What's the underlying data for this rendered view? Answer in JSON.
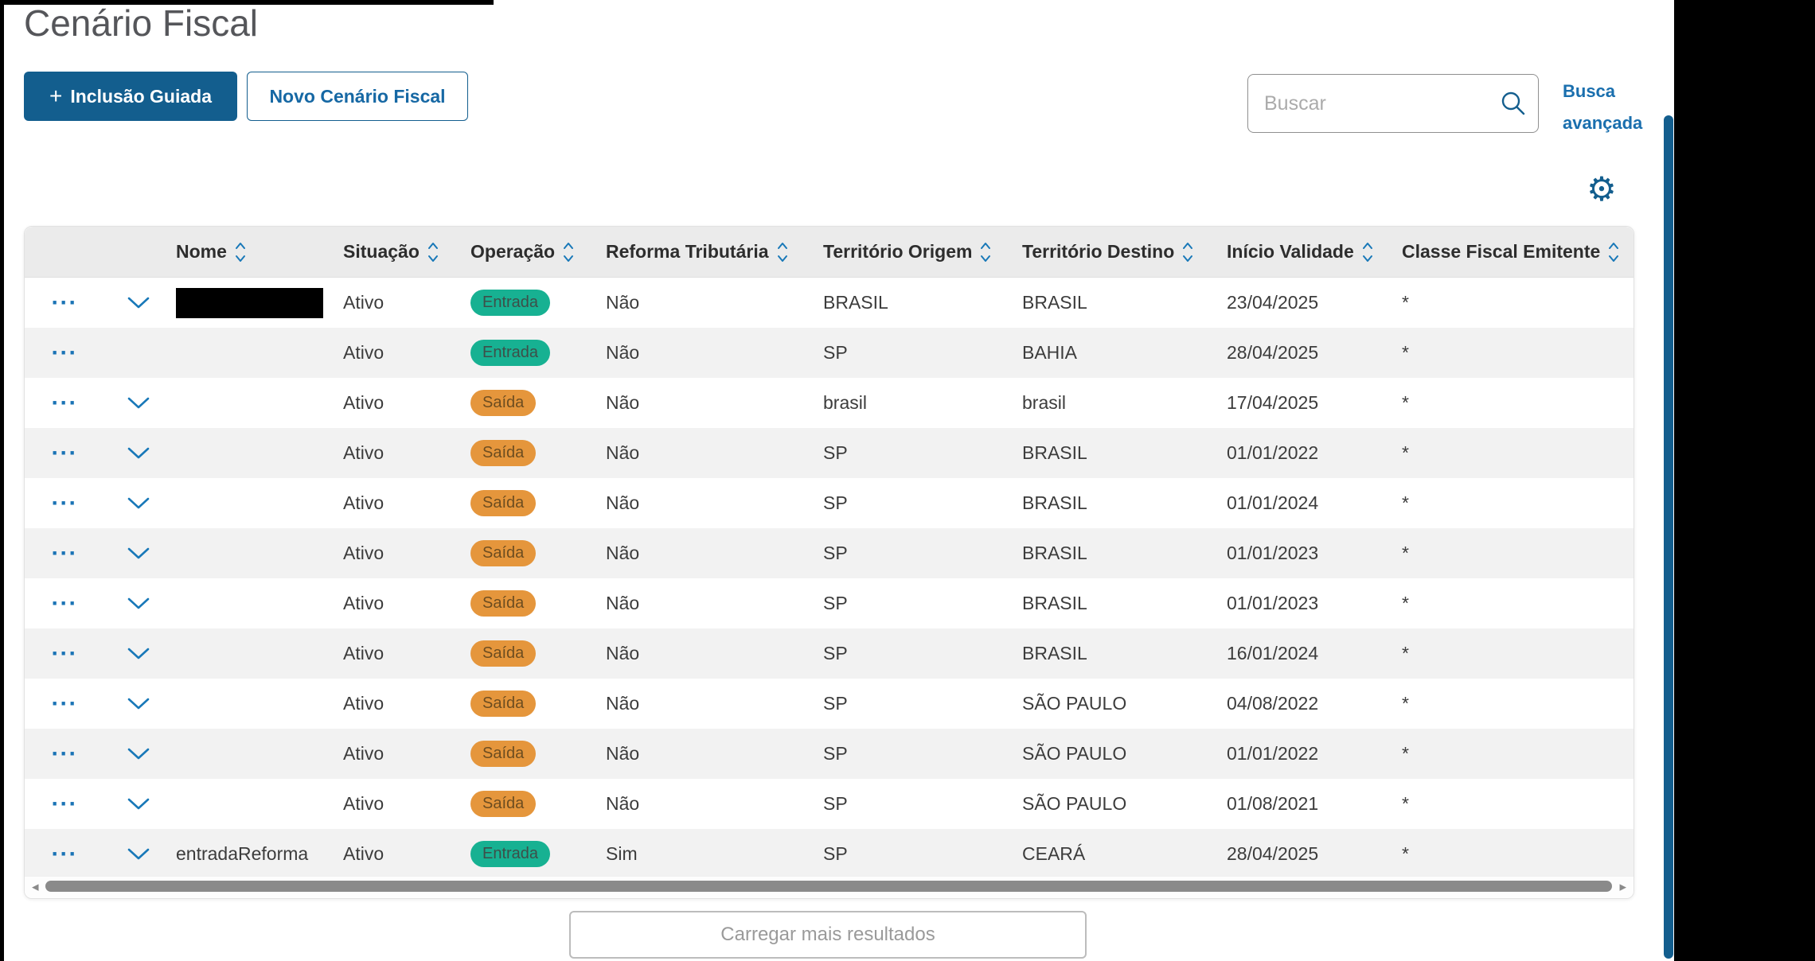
{
  "page": {
    "title": "Cenário Fiscal"
  },
  "toolbar": {
    "inclusao_guiada": {
      "plus_icon": "+",
      "label": "Inclusão Guiada"
    },
    "novo_cenario_label": "Novo Cenário Fiscal"
  },
  "search": {
    "placeholder": "Buscar",
    "advanced_line1": "Busca",
    "advanced_line2": "avançada"
  },
  "icons": {
    "gear": "⚙",
    "row_actions": "···",
    "scroll_left": "◂",
    "scroll_right": "▸"
  },
  "table": {
    "columns": [
      {
        "label": "",
        "sortable": false
      },
      {
        "label": "",
        "sortable": false
      },
      {
        "label": "Nome",
        "sortable": true
      },
      {
        "label": "Situação",
        "sortable": true
      },
      {
        "label": "Operação",
        "sortable": true
      },
      {
        "label": "Reforma Tributária",
        "sortable": true
      },
      {
        "label": "Território Origem",
        "sortable": true
      },
      {
        "label": "Território Destino",
        "sortable": true
      },
      {
        "label": "Início Validade",
        "sortable": true
      },
      {
        "label": "Classe Fiscal Emitente",
        "sortable": true
      }
    ],
    "rows": [
      {
        "expandable": true,
        "redacted": true,
        "name": "",
        "situacao": "Ativo",
        "operacao": "Entrada",
        "reforma": "Não",
        "origem": "BRASIL",
        "destino": "BRASIL",
        "inicio": "23/04/2025",
        "classe": "*"
      },
      {
        "expandable": false,
        "redacted": false,
        "name": "",
        "situacao": "Ativo",
        "operacao": "Entrada",
        "reforma": "Não",
        "origem": "SP",
        "destino": "BAHIA",
        "inicio": "28/04/2025",
        "classe": "*"
      },
      {
        "expandable": true,
        "redacted": false,
        "name": "",
        "situacao": "Ativo",
        "operacao": "Saída",
        "reforma": "Não",
        "origem": "brasil",
        "destino": "brasil",
        "inicio": "17/04/2025",
        "classe": "*"
      },
      {
        "expandable": true,
        "redacted": false,
        "name": "",
        "situacao": "Ativo",
        "operacao": "Saída",
        "reforma": "Não",
        "origem": "SP",
        "destino": "BRASIL",
        "inicio": "01/01/2022",
        "classe": "*"
      },
      {
        "expandable": true,
        "redacted": false,
        "name": "",
        "situacao": "Ativo",
        "operacao": "Saída",
        "reforma": "Não",
        "origem": "SP",
        "destino": "BRASIL",
        "inicio": "01/01/2024",
        "classe": "*"
      },
      {
        "expandable": true,
        "redacted": false,
        "name": "",
        "situacao": "Ativo",
        "operacao": "Saída",
        "reforma": "Não",
        "origem": "SP",
        "destino": "BRASIL",
        "inicio": "01/01/2023",
        "classe": "*"
      },
      {
        "expandable": true,
        "redacted": false,
        "name": "",
        "situacao": "Ativo",
        "operacao": "Saída",
        "reforma": "Não",
        "origem": "SP",
        "destino": "BRASIL",
        "inicio": "01/01/2023",
        "classe": "*"
      },
      {
        "expandable": true,
        "redacted": false,
        "name": "",
        "situacao": "Ativo",
        "operacao": "Saída",
        "reforma": "Não",
        "origem": "SP",
        "destino": "BRASIL",
        "inicio": "16/01/2024",
        "classe": "*"
      },
      {
        "expandable": true,
        "redacted": false,
        "name": "",
        "situacao": "Ativo",
        "operacao": "Saída",
        "reforma": "Não",
        "origem": "SP",
        "destino": "SÃO PAULO",
        "inicio": "04/08/2022",
        "classe": "*"
      },
      {
        "expandable": true,
        "redacted": false,
        "name": "",
        "situacao": "Ativo",
        "operacao": "Saída",
        "reforma": "Não",
        "origem": "SP",
        "destino": "SÃO PAULO",
        "inicio": "01/01/2022",
        "classe": "*"
      },
      {
        "expandable": true,
        "redacted": false,
        "name": "",
        "situacao": "Ativo",
        "operacao": "Saída",
        "reforma": "Não",
        "origem": "SP",
        "destino": "SÃO PAULO",
        "inicio": "01/08/2021",
        "classe": "*"
      },
      {
        "expandable": true,
        "redacted": false,
        "name": "entradaReforma",
        "situacao": "Ativo",
        "operacao": "Entrada",
        "reforma": "Sim",
        "origem": "SP",
        "destino": "CEARÁ",
        "inicio": "28/04/2025",
        "classe": "*"
      }
    ]
  },
  "footer": {
    "load_more_label": "Carregar mais resultados"
  },
  "colors": {
    "primary_blue": "#135e8e",
    "link_blue": "#1a6fae",
    "icon_blue": "#1878b8",
    "badge_entrada_bg": "#17b192",
    "badge_saida_bg": "#e5963c",
    "header_gray": "#ebebeb",
    "row_alt_gray": "#f2f2f2",
    "scroll_thumb_gray": "#8a8a8a"
  }
}
